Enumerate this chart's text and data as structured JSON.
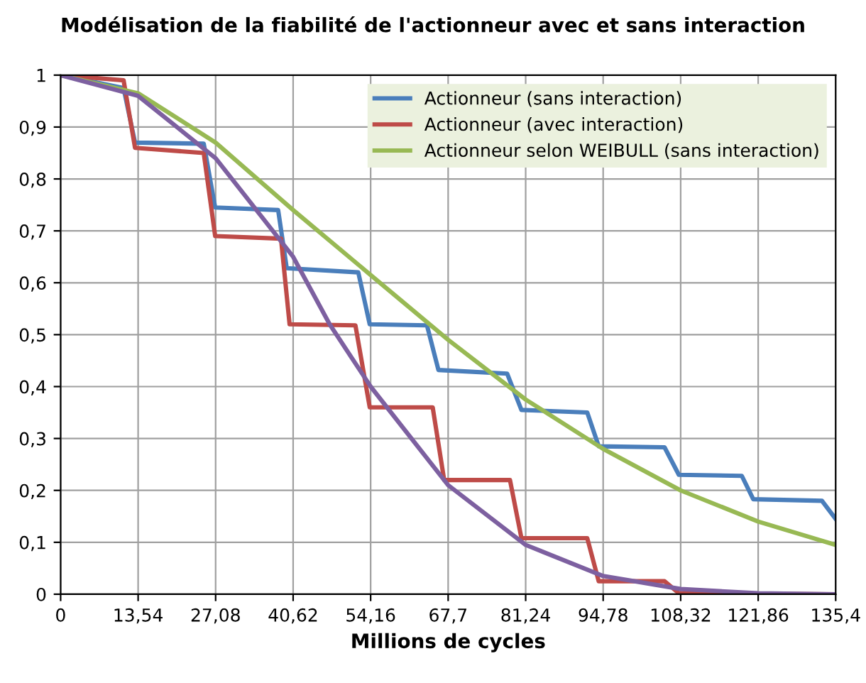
{
  "chart_data": {
    "type": "line",
    "title": "Modélisation de la fiabilité de l'actionneur avec et sans interaction",
    "xlabel": "Millions de cycles",
    "xlim": [
      0,
      135.4
    ],
    "ylim": [
      0,
      1
    ],
    "xticks": [
      0,
      {
        "value": 13.54,
        "label": "13,54"
      },
      {
        "value": 27.08,
        "label": "27,08"
      },
      {
        "value": 40.62,
        "label": "40,62"
      },
      {
        "value": 54.16,
        "label": "54,16"
      },
      {
        "value": 67.7,
        "label": "67,7"
      },
      {
        "value": 81.24,
        "label": "81,24"
      },
      {
        "value": 94.78,
        "label": "94,78"
      },
      {
        "value": 108.32,
        "label": "108,32"
      },
      {
        "value": 121.86,
        "label": "121,86"
      },
      {
        "value": 135.4,
        "label": "135,4"
      }
    ],
    "yticks": [
      0,
      {
        "value": 0.1,
        "label": "0,1"
      },
      {
        "value": 0.2,
        "label": "0,2"
      },
      {
        "value": 0.3,
        "label": "0,3"
      },
      {
        "value": 0.4,
        "label": "0,4"
      },
      {
        "value": 0.5,
        "label": "0,5"
      },
      {
        "value": 0.6,
        "label": "0,6"
      },
      {
        "value": 0.7,
        "label": "0,7"
      },
      {
        "value": 0.8,
        "label": "0,8"
      },
      {
        "value": 0.9,
        "label": "0,9"
      },
      1
    ],
    "grid": true,
    "legend": "top right",
    "marker": "none",
    "line_style": "solid",
    "series": [
      {
        "name": "Actionneur (sans interaction)",
        "color": "#4a7ebb",
        "x": [
          0,
          11,
          13,
          25,
          27,
          38,
          39.5,
          52,
          54,
          64,
          66,
          78,
          80.5,
          92,
          94,
          105.5,
          108,
          119,
          121,
          133,
          135.4
        ],
        "values": [
          1,
          0.975,
          0.87,
          0.868,
          0.745,
          0.74,
          0.628,
          0.62,
          0.52,
          0.518,
          0.432,
          0.425,
          0.355,
          0.35,
          0.285,
          0.283,
          0.23,
          0.228,
          0.183,
          0.18,
          0.145
        ]
      },
      {
        "name": "Actionneur (avec interaction)",
        "color": "#be4b48",
        "x": [
          0,
          11,
          13,
          25,
          27,
          38.5,
          40,
          51.5,
          54,
          65,
          67,
          78.5,
          80.5,
          92,
          94,
          105.5,
          108,
          135.4
        ],
        "values": [
          1,
          0.99,
          0.86,
          0.85,
          0.69,
          0.685,
          0.52,
          0.518,
          0.36,
          0.36,
          0.22,
          0.22,
          0.108,
          0.108,
          0.025,
          0.025,
          0.002,
          0
        ]
      },
      {
        "name": "Actionneur selon WEIBULL (sans interaction)",
        "color": "#98b954",
        "x": [
          0,
          13.54,
          27.08,
          40.62,
          54.16,
          67.7,
          81.24,
          94.78,
          108.32,
          121.86,
          135.4
        ],
        "values": [
          1,
          0.965,
          0.87,
          0.74,
          0.615,
          0.49,
          0.375,
          0.28,
          0.2,
          0.14,
          0.095
        ]
      },
      {
        "color": "#7d60a0",
        "x": [
          0,
          13.54,
          27.08,
          40.62,
          47,
          54.16,
          67.7,
          81.24,
          94.78,
          108.32,
          121.86,
          135.4
        ],
        "values": [
          1,
          0.96,
          0.84,
          0.65,
          0.52,
          0.4,
          0.21,
          0.095,
          0.035,
          0.01,
          0.002,
          0
        ]
      }
    ]
  }
}
